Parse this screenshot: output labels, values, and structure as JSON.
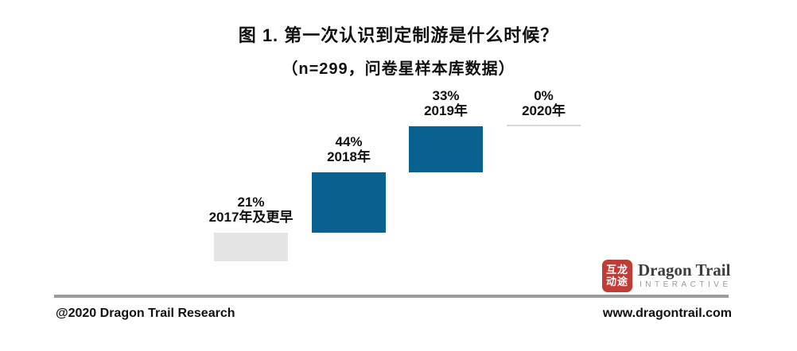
{
  "header": {
    "title": "图 1. 第一次认识到定制游是什么时候？",
    "subtitle": "（n=299，问卷星样本库数据）"
  },
  "chart_data": {
    "type": "bar",
    "variant": "waterfall-steps (each bar is stacked on the cumulative total of previous bars, no axes shown)",
    "categories": [
      "2017年及更早",
      "2018年",
      "2019年",
      "2020年"
    ],
    "values": [
      21,
      44,
      33,
      0
    ],
    "value_labels": [
      "21%",
      "44%",
      "33%",
      "0%"
    ],
    "title": "图 1. 第一次认识到定制游是什么时候？",
    "subtitle": "（n=299，问卷星样本库数据）",
    "xlabel": "",
    "ylabel": "",
    "ylim": [
      0,
      100
    ],
    "grid": false,
    "legend": "none",
    "bar_colors": [
      "#E4E4E4",
      "#09618F",
      "#09618F",
      "#09618F"
    ],
    "zero_line_color": "#D8D8D8"
  },
  "footer": {
    "copyright": "@2020 Dragon Trail Research",
    "website": "www.dragontrail.com"
  },
  "logo": {
    "seal_row1": "互龙",
    "seal_row2": "动途",
    "brand": "Dragon Trail",
    "tagline": "INTERACTIVE"
  },
  "colors": {
    "bar_blue": "#09618F",
    "bar_gray": "#E4E4E4",
    "seal_red": "#C23B34",
    "divider_gray": "#9B9B9B",
    "brand_dark": "#3D3D3D",
    "tagline_gray": "#9A9A9A"
  }
}
